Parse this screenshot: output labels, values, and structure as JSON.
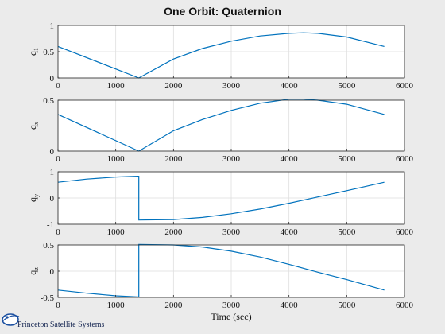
{
  "chart_data": {
    "type": "line",
    "title": "One Orbit: Quaternion",
    "xlabel": "Time (sec)",
    "xlim": [
      0,
      6000
    ],
    "xticks": [
      "0",
      "1000",
      "2000",
      "3000",
      "4000",
      "5000",
      "6000"
    ],
    "grid": true,
    "line_color": "#0072bd",
    "subplots": [
      {
        "ylabel_base": "q",
        "ylabel_sub": "1",
        "ylim": [
          0,
          1
        ],
        "yticks": [
          0,
          0.5,
          1
        ],
        "ytick_labels": [
          "0",
          "0.5",
          "1"
        ],
        "x": [
          0,
          1400,
          1400,
          2000,
          2500,
          3000,
          3500,
          4000,
          4250,
          4500,
          5000,
          5650
        ],
        "y": [
          0.6,
          0.0,
          0.0,
          0.36,
          0.56,
          0.7,
          0.8,
          0.85,
          0.86,
          0.85,
          0.78,
          0.6
        ]
      },
      {
        "ylabel_base": "q",
        "ylabel_sub": "x",
        "ylim": [
          0,
          0.5
        ],
        "yticks": [
          0,
          0.5
        ],
        "ytick_labels": [
          "0",
          "0.5"
        ],
        "x": [
          0,
          1400,
          1400,
          2000,
          2500,
          3000,
          3500,
          4000,
          4250,
          4500,
          5000,
          5650
        ],
        "y": [
          0.36,
          0.0,
          0.0,
          0.2,
          0.31,
          0.4,
          0.47,
          0.51,
          0.51,
          0.5,
          0.46,
          0.36
        ]
      },
      {
        "ylabel_base": "q",
        "ylabel_sub": "y",
        "ylim": [
          -1,
          1
        ],
        "yticks": [
          -1,
          0,
          1
        ],
        "ytick_labels": [
          "-1",
          "0",
          "1"
        ],
        "x": [
          0,
          500,
          1000,
          1380,
          1400,
          1400,
          2000,
          2500,
          3000,
          3500,
          4000,
          4500,
          5000,
          5650
        ],
        "y": [
          0.6,
          0.72,
          0.8,
          0.83,
          0.83,
          -0.84,
          -0.82,
          -0.74,
          -0.6,
          -0.42,
          -0.2,
          0.04,
          0.28,
          0.6
        ]
      },
      {
        "ylabel_base": "q",
        "ylabel_sub": "z",
        "ylim": [
          -0.5,
          0.5
        ],
        "yticks": [
          -0.5,
          0,
          0.5
        ],
        "ytick_labels": [
          "-0.5",
          "0",
          "0.5"
        ],
        "x": [
          0,
          500,
          1000,
          1380,
          1400,
          1400,
          2000,
          2500,
          3000,
          3500,
          4000,
          4500,
          5000,
          5650
        ],
        "y": [
          -0.36,
          -0.42,
          -0.47,
          -0.49,
          -0.49,
          0.51,
          0.5,
          0.46,
          0.38,
          0.27,
          0.13,
          -0.02,
          -0.16,
          -0.36
        ]
      }
    ]
  },
  "logo": {
    "text": "Princeton Satellite Systems"
  }
}
